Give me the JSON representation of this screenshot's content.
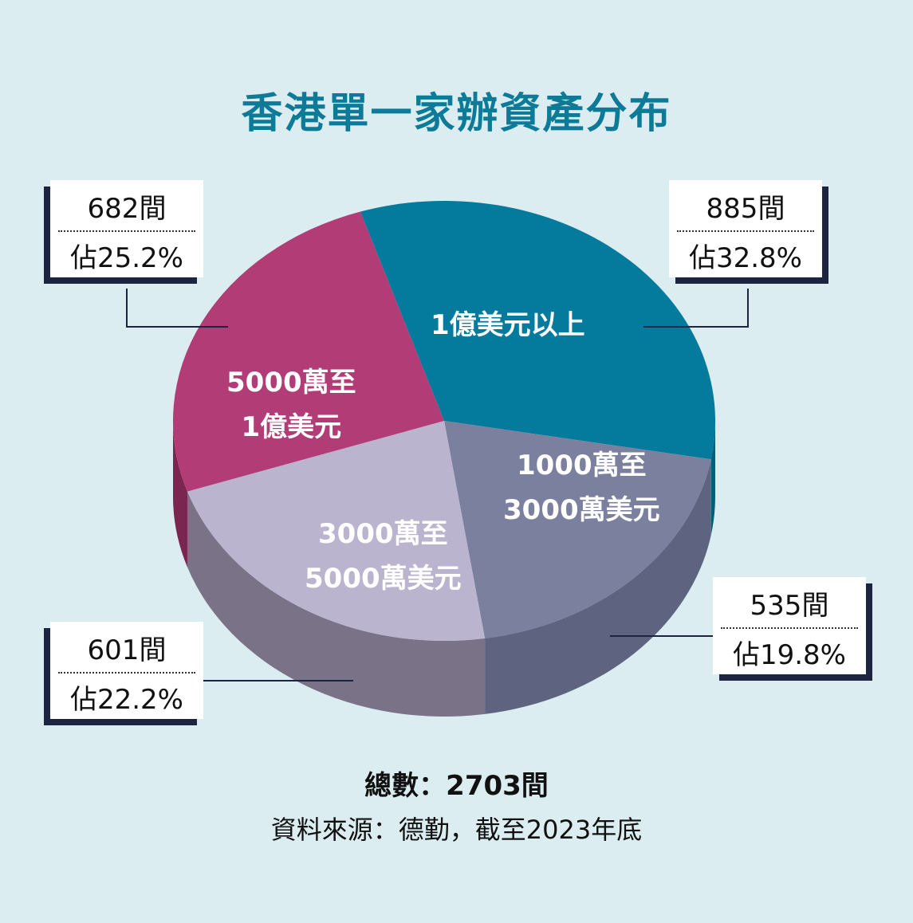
{
  "title": "香港單一家辦資產分布",
  "chart_data": {
    "type": "pie",
    "title": "香港單一家辦資產分布",
    "slices": [
      {
        "label": "1億美元以上",
        "count": "885間",
        "percent_label": "佔32.8%",
        "value": 32.8,
        "color": "#047a9c",
        "side_color": "#03607a"
      },
      {
        "label": "1000萬至3000萬美元",
        "count": "535間",
        "percent_label": "佔19.8%",
        "value": 19.8,
        "color": "#7a809e",
        "side_color": "#5e6480"
      },
      {
        "label": "3000萬至5000萬美元",
        "count": "601間",
        "percent_label": "佔22.2%",
        "value": 22.2,
        "color": "#bbb4cf",
        "side_color": "#7a7388"
      },
      {
        "label": "5000萬至1億美元",
        "count": "682間",
        "percent_label": "佔25.2%",
        "value": 25.2,
        "color": "#b13c76",
        "side_color": "#7a2650"
      }
    ]
  },
  "segments": {
    "s1": {
      "line1": "1億美元以上",
      "line2": ""
    },
    "s2": {
      "line1": "1000萬至",
      "line2": "3000萬美元"
    },
    "s3": {
      "line1": "3000萬至",
      "line2": "5000萬美元"
    },
    "s4": {
      "line1": "5000萬至",
      "line2": "1億美元"
    }
  },
  "callouts": {
    "top_right": {
      "count": "885間",
      "pct": "佔32.8%"
    },
    "bottom_right": {
      "count": "535間",
      "pct": "佔19.8%"
    },
    "bottom_left": {
      "count": "601間",
      "pct": "佔22.2%"
    },
    "top_left": {
      "count": "682間",
      "pct": "佔25.2%"
    }
  },
  "total": "總數：2703間",
  "source": "資料來源：德勤，截至2023年底"
}
